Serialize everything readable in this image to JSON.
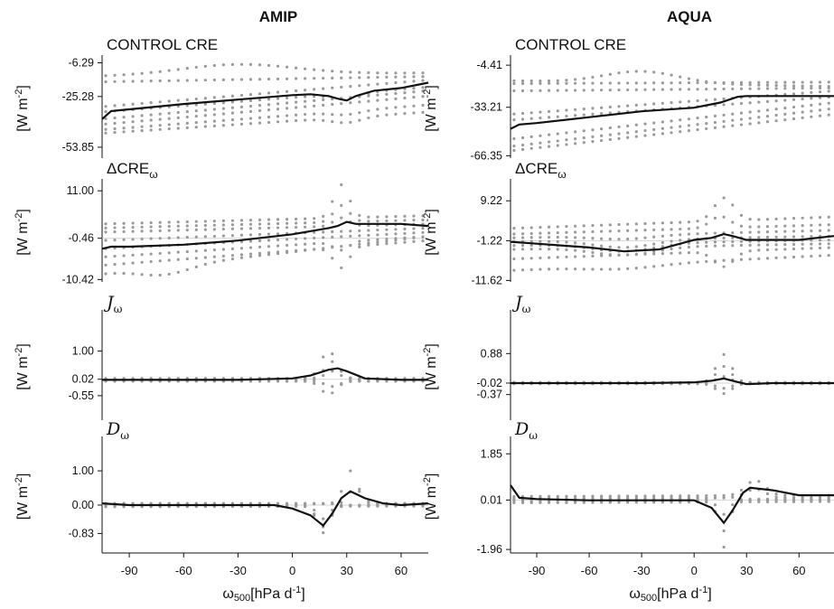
{
  "figure": {
    "columns": [
      {
        "id": "amip",
        "title": "AMIP"
      },
      {
        "id": "aqua",
        "title": "AQUA"
      }
    ],
    "xlabel_main": "ω",
    "xlabel_sub": "500",
    "xlabel_unit": "[hPa d",
    "xlabel_unit_sup": "-1",
    "xlabel_unit_close": "]",
    "ylabel_main": "[W m",
    "ylabel_sup": "-2",
    "ylabel_close": "]"
  },
  "chart_data": [
    {
      "type": "line",
      "column": "AMIP",
      "row": 0,
      "panel_label": "CONTROL CRE",
      "panel_label_style": "plain",
      "yticks": [
        -6.29,
        -25.28,
        -53.85
      ],
      "ylim": [
        -60,
        -4
      ],
      "xticks": [
        -90,
        -60,
        -30,
        0,
        30,
        60
      ],
      "xlim": [
        -105,
        75
      ],
      "zero_line": false,
      "mean": {
        "x": [
          -105,
          -100,
          -90,
          -60,
          -30,
          0,
          10,
          20,
          25,
          30,
          35,
          45,
          60,
          75
        ],
        "y": [
          -38,
          -33.5,
          -32.5,
          -29.5,
          -27,
          -24.5,
          -24,
          -25,
          -26.5,
          -27.5,
          -25,
          -22,
          -20.5,
          -17.5
        ]
      },
      "model_traces": [
        {
          "y_at_start": -14,
          "y_at_end": -12,
          "bulge_center": -30,
          "bulge_width": 45,
          "bulge_amp": 6
        },
        {
          "y_at_start": -17,
          "y_at_end": -14,
          "bulge_center": -30,
          "bulge_width": 50,
          "bulge_amp": 0
        },
        {
          "y_at_start": -31,
          "y_at_end": -16,
          "bulge_center": 30,
          "bulge_width": 10,
          "bulge_amp": 0
        },
        {
          "y_at_start": -34,
          "y_at_end": -20,
          "bulge_center": 30,
          "bulge_width": 12,
          "bulge_amp": -3
        },
        {
          "y_at_start": -38,
          "y_at_end": -22,
          "bulge_center": 30,
          "bulge_width": 12,
          "bulge_amp": 0
        },
        {
          "y_at_start": -41,
          "y_at_end": -25,
          "bulge_center": 30,
          "bulge_width": 12,
          "bulge_amp": 0
        },
        {
          "y_at_start": -44,
          "y_at_end": -30,
          "bulge_center": 30,
          "bulge_width": 12,
          "bulge_amp": -2
        },
        {
          "y_at_start": -46,
          "y_at_end": -34,
          "bulge_center": 30,
          "bulge_width": 12,
          "bulge_amp": -3
        }
      ]
    },
    {
      "type": "line",
      "column": "AMIP",
      "row": 1,
      "panel_label": "ΔCRE",
      "panel_label_sub": "ω",
      "panel_label_style": "plain",
      "yticks": [
        11.0,
        -0.46,
        -10.42
      ],
      "ylim": [
        -11,
        13
      ],
      "xticks": [
        -90,
        -60,
        -30,
        0,
        30,
        60
      ],
      "xlim": [
        -105,
        75
      ],
      "zero_line": true,
      "mean": {
        "x": [
          -105,
          -100,
          -90,
          -60,
          -30,
          0,
          20,
          25,
          30,
          35,
          45,
          60,
          75
        ],
        "y": [
          -3,
          -2.5,
          -2.5,
          -2,
          -1,
          0.5,
          2,
          2.5,
          3.5,
          3,
          3,
          3,
          2.5
        ]
      },
      "model_traces": [
        {
          "y_at_start": 3,
          "y_at_end": 5,
          "bulge_center": 27,
          "bulge_width": 6,
          "bulge_amp": 8
        },
        {
          "y_at_start": 2,
          "y_at_end": 4,
          "bulge_center": 27,
          "bulge_width": 6,
          "bulge_amp": 4
        },
        {
          "y_at_start": 1,
          "y_at_end": 3,
          "bulge_center": 27,
          "bulge_width": 6,
          "bulge_amp": 2
        },
        {
          "y_at_start": -1,
          "y_at_end": 2,
          "bulge_center": 27,
          "bulge_width": 6,
          "bulge_amp": 0
        },
        {
          "y_at_start": -3,
          "y_at_end": 1,
          "bulge_center": 27,
          "bulge_width": 6,
          "bulge_amp": 0
        },
        {
          "y_at_start": -5,
          "y_at_end": 0,
          "bulge_center": 27,
          "bulge_width": 6,
          "bulge_amp": -2
        },
        {
          "y_at_start": -7,
          "y_at_end": -1,
          "bulge_center": 27,
          "bulge_width": 6,
          "bulge_amp": -5
        },
        {
          "y_at_start": -9,
          "y_at_end": 0,
          "bulge_center": -70,
          "bulge_width": 20,
          "bulge_amp": -2
        }
      ]
    },
    {
      "type": "line",
      "column": "AMIP",
      "row": 2,
      "panel_label": "J",
      "panel_label_sub": "ω",
      "panel_label_style": "script",
      "yticks": [
        1.0,
        0.02,
        -0.55
      ],
      "ylim": [
        -1.4,
        2.3
      ],
      "xticks": [
        -90,
        -60,
        -30,
        0,
        30,
        60
      ],
      "xlim": [
        -105,
        75
      ],
      "zero_line": true,
      "mean": {
        "x": [
          -105,
          -90,
          -60,
          -30,
          0,
          10,
          20,
          25,
          30,
          40,
          60,
          75
        ],
        "y": [
          0,
          0,
          0,
          0,
          0.05,
          0.15,
          0.35,
          0.4,
          0.3,
          0.05,
          0,
          0
        ]
      },
      "model_traces": [
        {
          "y_at_start": 0.05,
          "y_at_end": 0.05,
          "bulge_center": 20,
          "bulge_width": 6,
          "bulge_amp": 0.95
        },
        {
          "y_at_start": 0.03,
          "y_at_end": 0.03,
          "bulge_center": 22,
          "bulge_width": 6,
          "bulge_amp": 0.6
        },
        {
          "y_at_start": 0.0,
          "y_at_end": 0.0,
          "bulge_center": 22,
          "bulge_width": 6,
          "bulge_amp": 0.3
        },
        {
          "y_at_start": -0.03,
          "y_at_end": -0.03,
          "bulge_center": 22,
          "bulge_width": 6,
          "bulge_amp": -0.2
        },
        {
          "y_at_start": -0.05,
          "y_at_end": -0.05,
          "bulge_center": 20,
          "bulge_width": 6,
          "bulge_amp": -0.45
        }
      ]
    },
    {
      "type": "line",
      "column": "AMIP",
      "row": 3,
      "panel_label": "D",
      "panel_label_sub": "ω",
      "panel_label_style": "script",
      "yticks": [
        1.0,
        0.0,
        -0.83
      ],
      "ylim": [
        -1.4,
        1.9
      ],
      "xticks": [
        -90,
        -60,
        -30,
        0,
        30,
        60
      ],
      "xlim": [
        -105,
        75
      ],
      "zero_line": true,
      "mean": {
        "x": [
          -105,
          -90,
          -60,
          -30,
          -10,
          0,
          10,
          17,
          22,
          27,
          32,
          40,
          50,
          60,
          75
        ],
        "y": [
          0.05,
          0,
          0,
          0,
          0,
          -0.1,
          -0.3,
          -0.6,
          -0.25,
          0.2,
          0.4,
          0.2,
          0.05,
          0,
          0.05
        ]
      },
      "model_traces": [
        {
          "y_at_start": 0.05,
          "y_at_end": 0.05,
          "bulge_center": 32,
          "bulge_width": 5,
          "bulge_amp": 0.95
        },
        {
          "y_at_start": 0.0,
          "y_at_end": 0.05,
          "bulge_center": 35,
          "bulge_width": 5,
          "bulge_amp": 0.5
        },
        {
          "y_at_start": 0.0,
          "y_at_end": 0.0,
          "bulge_center": 17,
          "bulge_width": 5,
          "bulge_amp": -0.4
        },
        {
          "y_at_start": -0.03,
          "y_at_end": 0.0,
          "bulge_center": 17,
          "bulge_width": 5,
          "bulge_amp": -0.8
        },
        {
          "y_at_start": -0.05,
          "y_at_end": -0.03,
          "bulge_center": 17,
          "bulge_width": 5,
          "bulge_amp": -0.6
        }
      ]
    },
    {
      "type": "line",
      "column": "AQUA",
      "row": 0,
      "panel_label": "CONTROL CRE",
      "panel_label_style": "plain",
      "yticks": [
        -4.41,
        -33.21,
        -66.35
      ],
      "ylim": [
        -68,
        0
      ],
      "xticks": [
        -90,
        -60,
        -30,
        0,
        30,
        60
      ],
      "xlim": [
        -105,
        80
      ],
      "zero_line": false,
      "mean": {
        "x": [
          -105,
          -100,
          -90,
          -60,
          -30,
          0,
          15,
          25,
          30,
          45,
          60,
          80
        ],
        "y": [
          -48,
          -45,
          -44,
          -40,
          -36,
          -33.5,
          -30,
          -26,
          -25.5,
          -25.5,
          -25.5,
          -25.5
        ]
      },
      "model_traces": [
        {
          "y_at_start": -15,
          "y_at_end": -19,
          "bulge_center": -30,
          "bulge_width": 30,
          "bulge_amp": 8
        },
        {
          "y_at_start": -17,
          "y_at_end": -16,
          "bulge_center": -30,
          "bulge_width": 30,
          "bulge_amp": 0
        },
        {
          "y_at_start": -22,
          "y_at_end": -20,
          "bulge_center": 30,
          "bulge_width": 15,
          "bulge_amp": 0
        },
        {
          "y_at_start": -38,
          "y_at_end": -22,
          "bulge_center": 30,
          "bulge_width": 15,
          "bulge_amp": 0
        },
        {
          "y_at_start": -42,
          "y_at_end": -26,
          "bulge_center": 30,
          "bulge_width": 15,
          "bulge_amp": 0
        },
        {
          "y_at_start": -55,
          "y_at_end": -30,
          "bulge_center": 30,
          "bulge_width": 15,
          "bulge_amp": 0
        },
        {
          "y_at_start": -60,
          "y_at_end": -34,
          "bulge_center": 30,
          "bulge_width": 15,
          "bulge_amp": 0
        },
        {
          "y_at_start": -63,
          "y_at_end": -38,
          "bulge_center": 30,
          "bulge_width": 15,
          "bulge_amp": 0
        }
      ]
    },
    {
      "type": "line",
      "column": "AQUA",
      "row": 1,
      "panel_label": "ΔCRE",
      "panel_label_sub": "ω",
      "panel_label_style": "plain",
      "yticks": [
        9.22,
        -1.22,
        -11.62
      ],
      "ylim": [
        -12,
        14
      ],
      "xticks": [
        -90,
        -60,
        -30,
        0,
        30,
        60
      ],
      "xlim": [
        -105,
        80
      ],
      "zero_line": true,
      "mean": {
        "x": [
          -105,
          -90,
          -60,
          -40,
          -20,
          0,
          10,
          17,
          22,
          30,
          45,
          60,
          80
        ],
        "y": [
          -1.5,
          -2,
          -3,
          -4,
          -3.5,
          -1,
          -0.5,
          0.5,
          0,
          -1,
          -1,
          -1,
          0
        ]
      },
      "model_traces": [
        {
          "y_at_start": 2,
          "y_at_end": 5,
          "bulge_center": 17,
          "bulge_width": 8,
          "bulge_amp": 6
        },
        {
          "y_at_start": 0.5,
          "y_at_end": 3,
          "bulge_center": 15,
          "bulge_width": 8,
          "bulge_amp": 3
        },
        {
          "y_at_start": -0.5,
          "y_at_end": 1.5,
          "bulge_center": -40,
          "bulge_width": 25,
          "bulge_amp": -1
        },
        {
          "y_at_start": -1.5,
          "y_at_end": 0,
          "bulge_center": -40,
          "bulge_width": 25,
          "bulge_amp": -2
        },
        {
          "y_at_start": -2.5,
          "y_at_end": -1,
          "bulge_center": -40,
          "bulge_width": 25,
          "bulge_amp": -2
        },
        {
          "y_at_start": -3.5,
          "y_at_end": -2,
          "bulge_center": -40,
          "bulge_width": 25,
          "bulge_amp": -2
        },
        {
          "y_at_start": -6,
          "y_at_end": -3,
          "bulge_center": 17,
          "bulge_width": 8,
          "bulge_amp": -4
        },
        {
          "y_at_start": -9,
          "y_at_end": -5,
          "bulge_center": -40,
          "bulge_width": 30,
          "bulge_amp": -1
        }
      ]
    },
    {
      "type": "line",
      "column": "AQUA",
      "row": 2,
      "panel_label": "J",
      "panel_label_sub": "ω",
      "panel_label_style": "script",
      "yticks": [
        0.88,
        -0.02,
        -0.37
      ],
      "ylim": [
        -1.15,
        2.1
      ],
      "xticks": [
        -90,
        -60,
        -30,
        0,
        30,
        60
      ],
      "xlim": [
        -105,
        80
      ],
      "zero_line": true,
      "mean": {
        "x": [
          -105,
          -90,
          -60,
          -30,
          0,
          10,
          17,
          22,
          30,
          45,
          60,
          80
        ],
        "y": [
          -0.02,
          -0.02,
          -0.02,
          -0.02,
          0.0,
          0.05,
          0.12,
          0.05,
          -0.05,
          -0.02,
          -0.02,
          -0.02
        ]
      },
      "model_traces": [
        {
          "y_at_start": 0.0,
          "y_at_end": 0.0,
          "bulge_center": 17,
          "bulge_width": 6,
          "bulge_amp": 0.85
        },
        {
          "y_at_start": -0.01,
          "y_at_end": -0.01,
          "bulge_center": 17,
          "bulge_width": 6,
          "bulge_amp": 0.5
        },
        {
          "y_at_start": -0.02,
          "y_at_end": -0.02,
          "bulge_center": 17,
          "bulge_width": 6,
          "bulge_amp": 0.2
        },
        {
          "y_at_start": -0.03,
          "y_at_end": -0.03,
          "bulge_center": 17,
          "bulge_width": 6,
          "bulge_amp": -0.15
        },
        {
          "y_at_start": -0.04,
          "y_at_end": -0.04,
          "bulge_center": 17,
          "bulge_width": 6,
          "bulge_amp": -0.3
        }
      ]
    },
    {
      "type": "line",
      "column": "AQUA",
      "row": 3,
      "panel_label": "D",
      "panel_label_sub": "ω",
      "panel_label_style": "script",
      "yticks": [
        1.85,
        0.01,
        -1.96
      ],
      "ylim": [
        -2.1,
        2.4
      ],
      "xticks": [
        -90,
        -60,
        -30,
        0,
        30,
        60
      ],
      "xlim": [
        -105,
        80
      ],
      "zero_line": true,
      "mean": {
        "x": [
          -105,
          -100,
          -90,
          -60,
          -30,
          0,
          10,
          17,
          22,
          28,
          32,
          45,
          60,
          80
        ],
        "y": [
          0.6,
          0.1,
          0.05,
          0,
          0,
          0,
          -0.3,
          -0.9,
          -0.4,
          0.3,
          0.5,
          0.4,
          0.2,
          0.2
        ]
      },
      "model_traces": [
        {
          "y_at_start": 0.15,
          "y_at_end": 0.2,
          "bulge_center": 35,
          "bulge_width": 8,
          "bulge_amp": 0.6
        },
        {
          "y_at_start": 0.08,
          "y_at_end": 0.1,
          "bulge_center": 35,
          "bulge_width": 8,
          "bulge_amp": 0.35
        },
        {
          "y_at_start": 0.02,
          "y_at_end": 0.05,
          "bulge_center": 17,
          "bulge_width": 5,
          "bulge_amp": -0.6
        },
        {
          "y_at_start": -0.05,
          "y_at_end": 0.0,
          "bulge_center": 17,
          "bulge_width": 5,
          "bulge_amp": -1.2
        },
        {
          "y_at_start": -0.1,
          "y_at_end": -0.05,
          "bulge_center": 17,
          "bulge_width": 4,
          "bulge_amp": -1.8
        }
      ]
    }
  ]
}
